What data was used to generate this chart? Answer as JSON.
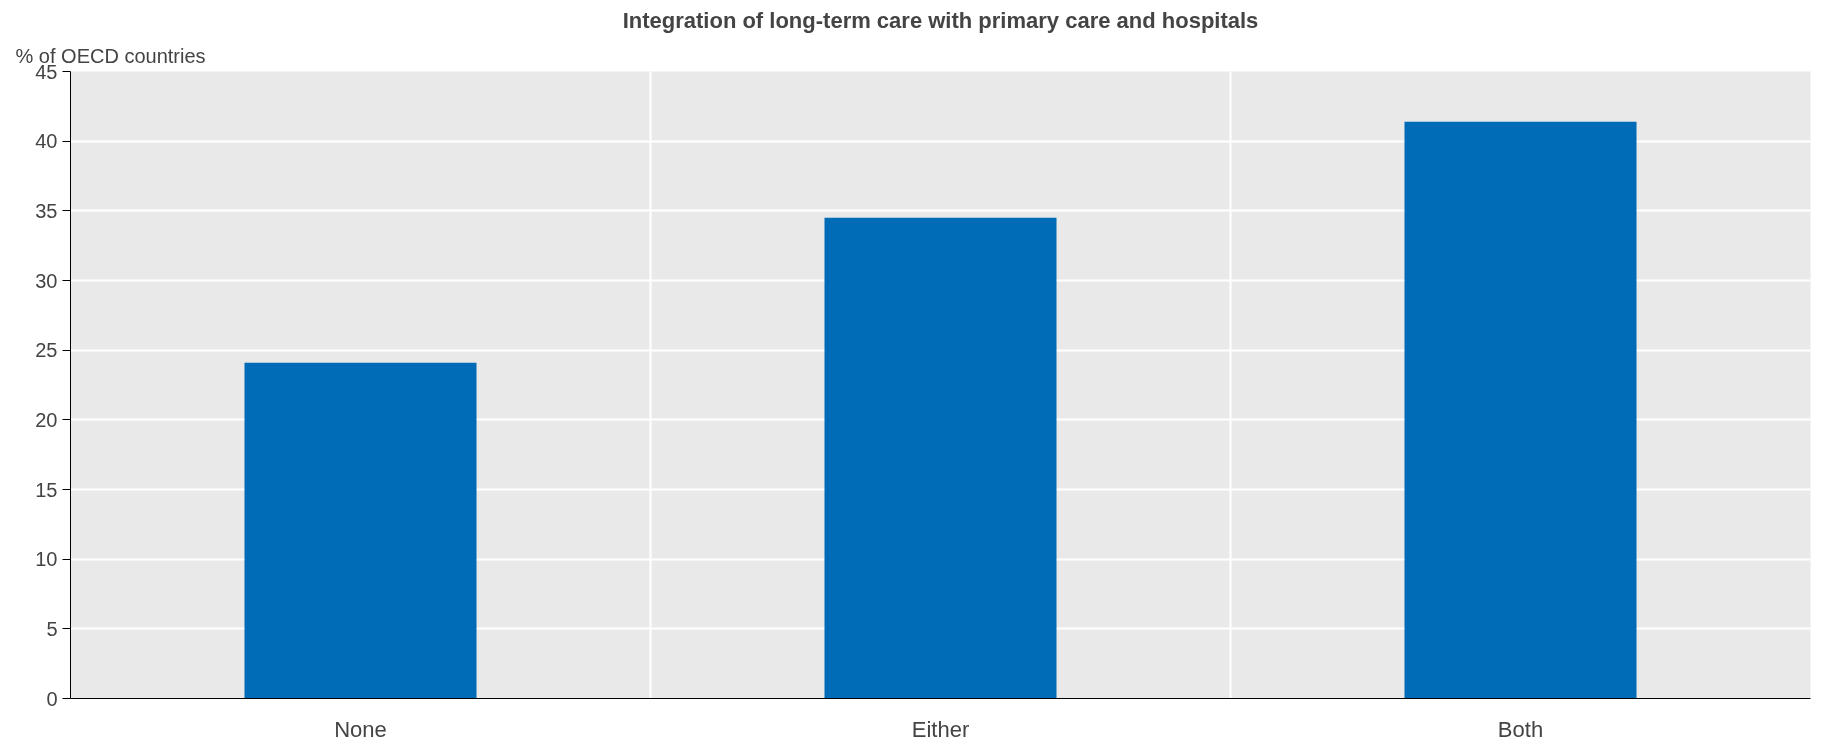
{
  "chart_data": {
    "type": "bar",
    "title": "Integration of long-term care with primary care and hospitals",
    "ylabel": "% of OECD countries",
    "categories": [
      "None",
      "Either",
      "Both"
    ],
    "values": [
      24.1,
      34.5,
      41.4
    ],
    "color": "#006bb6",
    "ylim": [
      0,
      45
    ],
    "yticks": [
      0,
      5,
      10,
      15,
      20,
      25,
      30,
      35,
      40,
      45
    ],
    "grid": true
  }
}
